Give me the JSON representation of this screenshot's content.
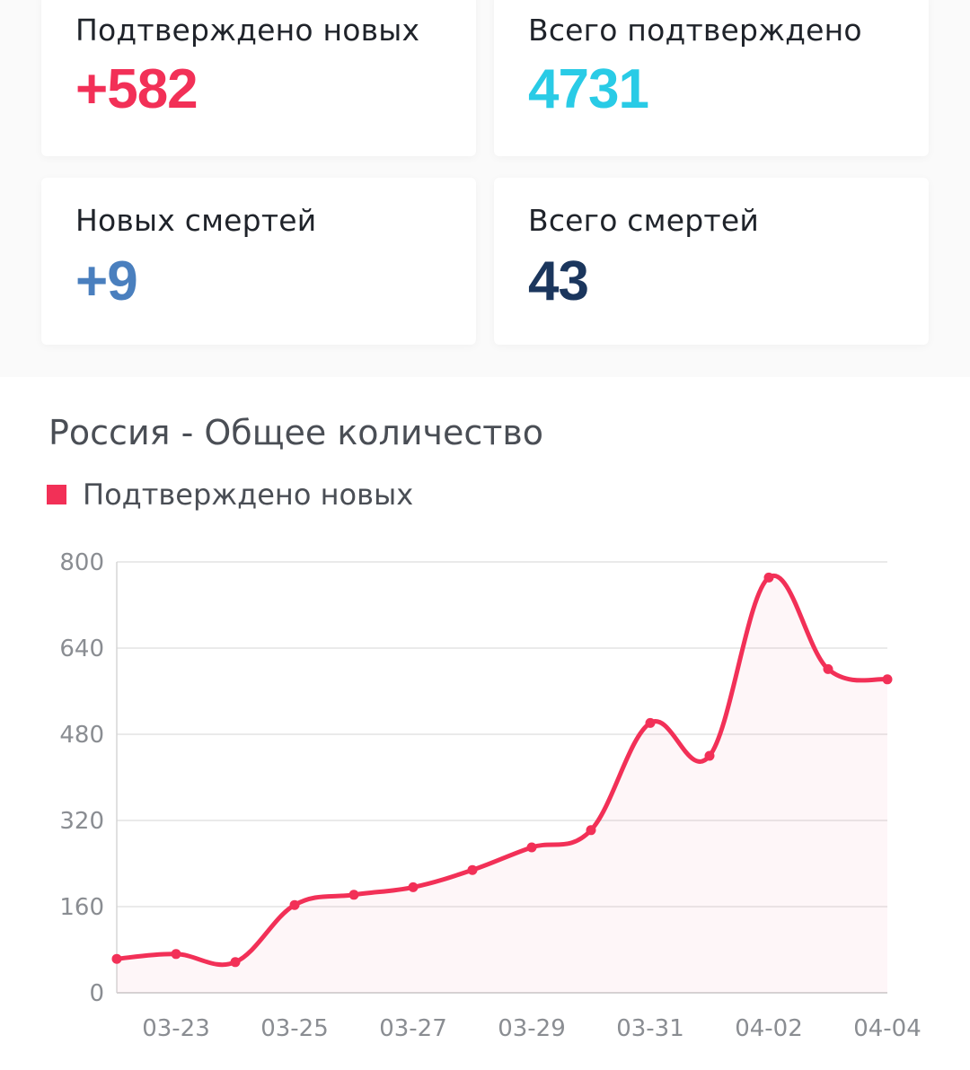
{
  "stats": [
    {
      "label": "Подтверждено новых",
      "value": "+582",
      "color": "#f23057"
    },
    {
      "label": "Всего подтверждено",
      "value": "4731",
      "color": "#29cbe6"
    },
    {
      "label": "Новых смертей",
      "value": "+9",
      "color": "#4a7fbe"
    },
    {
      "label": "Всего смертей",
      "value": "43",
      "color": "#1b365d"
    }
  ],
  "chart": {
    "title": "Россия - Общее количество",
    "legend_label": "Подтверждено новых",
    "legend_color": "#f23057"
  },
  "chart_data": {
    "type": "area",
    "title": "Россия - Общее количество",
    "xlabel": "",
    "ylabel": "",
    "legend": [
      "Подтверждено новых"
    ],
    "legend_position": "top-left",
    "grid": true,
    "ylim": [
      0,
      800
    ],
    "yticks": [
      0,
      160,
      320,
      480,
      640,
      800
    ],
    "x": [
      "03-22",
      "03-23",
      "03-24",
      "03-25",
      "03-26",
      "03-27",
      "03-28",
      "03-29",
      "03-30",
      "03-31",
      "04-01",
      "04-02",
      "04-03",
      "04-04"
    ],
    "xtick_labels": [
      "03-23",
      "03-25",
      "03-27",
      "03-29",
      "03-31",
      "04-02",
      "04-04"
    ],
    "series": [
      {
        "name": "Подтверждено новых",
        "color": "#f23057",
        "values": [
          63,
          72,
          57,
          163,
          182,
          196,
          228,
          270,
          302,
          501,
          440,
          771,
          601,
          582
        ]
      }
    ]
  }
}
